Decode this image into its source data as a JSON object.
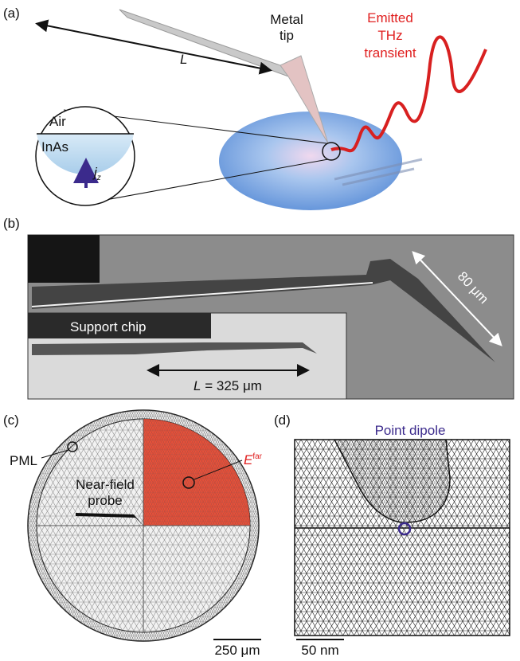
{
  "panels": {
    "a": {
      "label": "(a)",
      "tip_label": [
        "Metal",
        "tip"
      ],
      "emission_label": [
        "Emitted",
        "THz",
        "transient"
      ],
      "length_symbol": "L",
      "inset": {
        "upper_medium": "Air",
        "lower_medium": "InAs",
        "current_symbol": "j",
        "current_subscript": "z"
      }
    },
    "b": {
      "label": "(b)",
      "tip_length": "80 μm",
      "inset_label": "Support chip",
      "length_symbol": "L",
      "length_value": "= 325 μm"
    },
    "c": {
      "label": "(c)",
      "pml_label": "PML",
      "field_symbol": "E",
      "field_superscript": "far",
      "probe_label": [
        "Near-field",
        "probe"
      ],
      "scale_bar": "250 μm"
    },
    "d": {
      "label": "(d)",
      "dipole_label": "Point dipole",
      "scale_bar": "50 nm"
    }
  }
}
